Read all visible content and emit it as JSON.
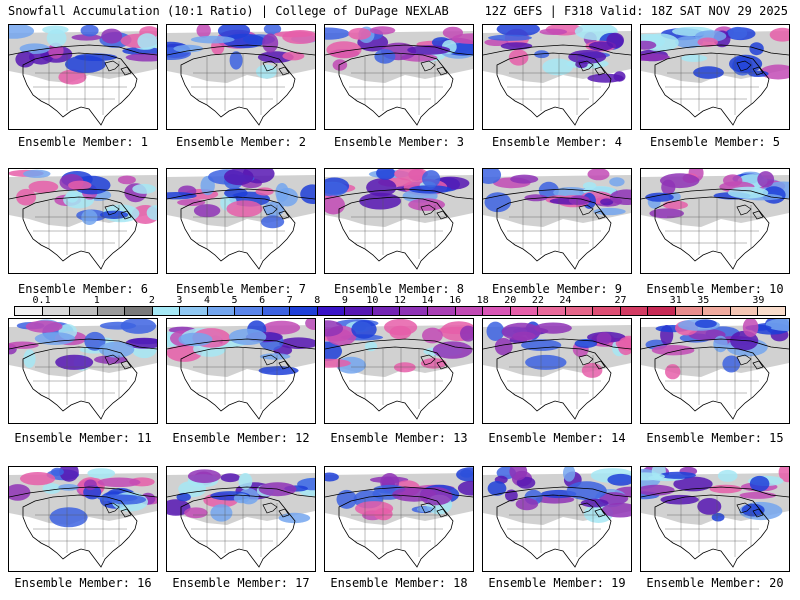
{
  "header": {
    "title_left": "Snowfall Accumulation (10:1 Ratio) | College of DuPage NEXLAB",
    "title_right": "12Z GEFS | F318 Valid: 18Z SAT NOV 29 2025"
  },
  "panels": [
    {
      "label": "Ensemble Member: 1"
    },
    {
      "label": "Ensemble Member: 2"
    },
    {
      "label": "Ensemble Member: 3"
    },
    {
      "label": "Ensemble Member: 4"
    },
    {
      "label": "Ensemble Member: 5"
    },
    {
      "label": "Ensemble Member: 6"
    },
    {
      "label": "Ensemble Member: 7"
    },
    {
      "label": "Ensemble Member: 8"
    },
    {
      "label": "Ensemble Member: 9"
    },
    {
      "label": "Ensemble Member: 10"
    },
    {
      "label": "Ensemble Member: 11"
    },
    {
      "label": "Ensemble Member: 12"
    },
    {
      "label": "Ensemble Member: 13"
    },
    {
      "label": "Ensemble Member: 14"
    },
    {
      "label": "Ensemble Member: 15"
    },
    {
      "label": "Ensemble Member: 16"
    },
    {
      "label": "Ensemble Member: 17"
    },
    {
      "label": "Ensemble Member: 18"
    },
    {
      "label": "Ensemble Member: 19"
    },
    {
      "label": "Ensemble Member: 20"
    }
  ],
  "colorbar": {
    "ticks": [
      "0.1",
      "1",
      "2",
      "3",
      "4",
      "5",
      "6",
      "7",
      "8",
      "9",
      "10",
      "12",
      "14",
      "16",
      "18",
      "20",
      "22",
      "24",
      "27",
      "31",
      "35",
      "39"
    ],
    "colors": [
      "#f2f2f2",
      "#d9d9d9",
      "#bdbdbd",
      "#9a9a9a",
      "#7a7a7a",
      "#a6e8f5",
      "#8fc7f2",
      "#74a6ef",
      "#5a85ea",
      "#3d63e2",
      "#1f3fd8",
      "#3a14c8",
      "#5716b3",
      "#7424b4",
      "#8f32b6",
      "#a93eb5",
      "#c24ab5",
      "#d955b6",
      "#e65ea9",
      "#e9699a",
      "#e5668a",
      "#dd4e74",
      "#d33c63",
      "#c72a55",
      "#e98d8d",
      "#f0aa9e",
      "#f4c6b4",
      "#f8dccb"
    ]
  }
}
